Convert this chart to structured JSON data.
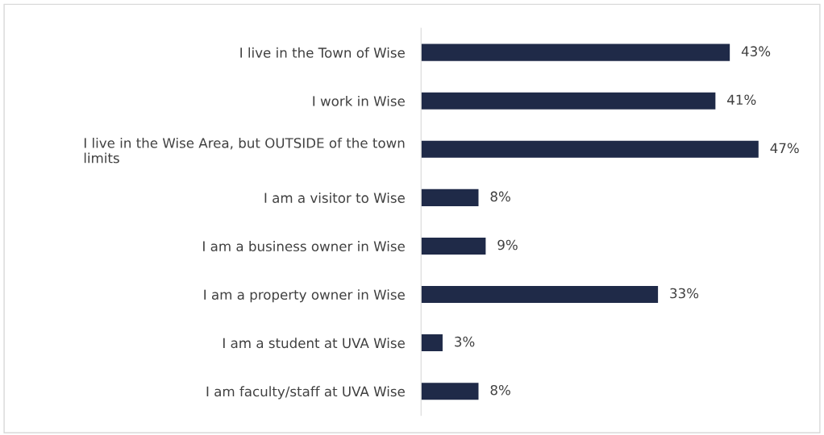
{
  "chart_data": {
    "type": "bar",
    "orientation": "horizontal",
    "categories": [
      "I live in the Town of Wise",
      "I work in Wise",
      "I live in the Wise Area, but OUTSIDE of the town\nlimits",
      "I am a visitor to Wise",
      "I am a business owner in Wise",
      "I am a property owner in Wise",
      "I am a student at UVA Wise",
      "I am faculty/staff at UVA Wise"
    ],
    "values": [
      43,
      41,
      47,
      8,
      9,
      33,
      3,
      8
    ],
    "value_labels": [
      "43%",
      "41%",
      "47%",
      "8%",
      "9%",
      "33%",
      "3%",
      "8%"
    ],
    "color": "#1f2a48",
    "grid": false,
    "legend": false,
    "tick_labels": "y"
  }
}
